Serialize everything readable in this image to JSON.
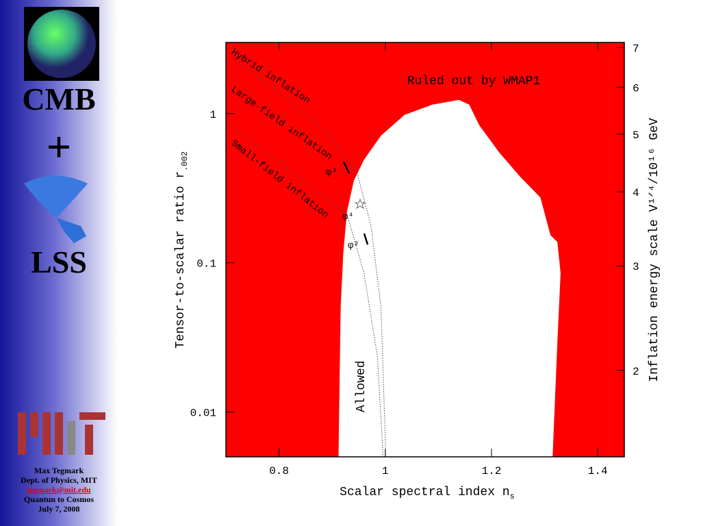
{
  "sidebar": {
    "top": "CMB",
    "plus": "+",
    "bottom": "LSS",
    "footer": [
      "Max Tegmark",
      "Dept. of Physics, MIT",
      "tegmark@mit.edu",
      "Quantun to Cosmos",
      "July 7, 2008"
    ]
  },
  "chart_data": {
    "type": "region",
    "xlabel": "Scalar spectral index n",
    "xlabel_sub": "s",
    "ylabel": "Tensor-to-scalar ratio r",
    "ylabel_sub": ".002",
    "y2label": "Inflation energy scale V¹ᐟ⁴/10¹⁶ GeV",
    "xlim": [
      0.7,
      1.45
    ],
    "xticks": [
      0.8,
      1,
      1.2,
      1.4
    ],
    "ylim": [
      0.005,
      3
    ],
    "yticks": [
      0.01,
      0.1,
      1
    ],
    "ylog": true,
    "y2lim": [
      1.43,
      7.14
    ],
    "y2ticks": [
      2,
      3,
      4,
      5,
      6,
      7
    ],
    "y2log": true,
    "background_color": "#ff0000",
    "region_color": "#ffffff",
    "allowed_region": {
      "x": [
        0.912,
        0.916,
        0.921,
        0.928,
        0.941,
        0.96,
        0.992,
        1.036,
        1.088,
        1.139,
        1.158,
        1.177,
        1.215,
        1.254,
        1.292,
        1.311,
        1.324,
        1.33,
        1.324,
        1.315
      ],
      "y": [
        0.005,
        0.0502,
        0.117,
        0.222,
        0.357,
        0.491,
        0.712,
        0.979,
        1.148,
        1.236,
        1.148,
        0.835,
        0.546,
        0.377,
        0.274,
        0.153,
        0.138,
        0.085,
        0.0296,
        0.005
      ]
    },
    "series": [
      {
        "x": [
          0.717,
          0.819,
          0.896,
          0.947,
          0.973,
          0.992,
          1.001
        ],
        "values": [
          2.288,
          1.21,
          0.712,
          0.397,
          0.179,
          0.0503,
          0.005
        ]
      },
      {
        "x": [
          0.707,
          0.819,
          0.928,
          0.96,
          0.985,
          0.996
        ],
        "values": [
          0.835,
          0.419,
          0.21,
          0.0853,
          0.0239,
          0.005
        ]
      }
    ],
    "annotations": [
      "Hybrid inflation",
      "Large-field inflation",
      "Small-field inflation",
      "Ruled out by WMAP1",
      "Allowed",
      "φ³",
      "φ⁴",
      "φ²"
    ]
  }
}
